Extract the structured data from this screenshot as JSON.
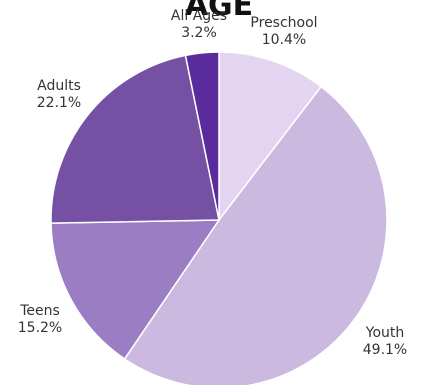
{
  "chart_data": {
    "type": "pie",
    "title": "AGE",
    "start_angle_deg": 0,
    "direction": "clockwise",
    "slices": [
      {
        "label": "Preschool",
        "value": 10.4,
        "value_label": "10.4%",
        "color": "#e3d5f1"
      },
      {
        "label": "Youth",
        "value": 49.1,
        "value_label": "49.1%",
        "color": "#cbb9e0"
      },
      {
        "label": "Teens",
        "value": 15.2,
        "value_label": "15.2%",
        "color": "#9a7dc2"
      },
      {
        "label": "Adults",
        "value": 22.1,
        "value_label": "22.1%",
        "color": "#7550a3"
      },
      {
        "label": "All Ages",
        "value": 3.2,
        "value_label": "3.2%",
        "color": "#5a2b9c"
      }
    ]
  }
}
